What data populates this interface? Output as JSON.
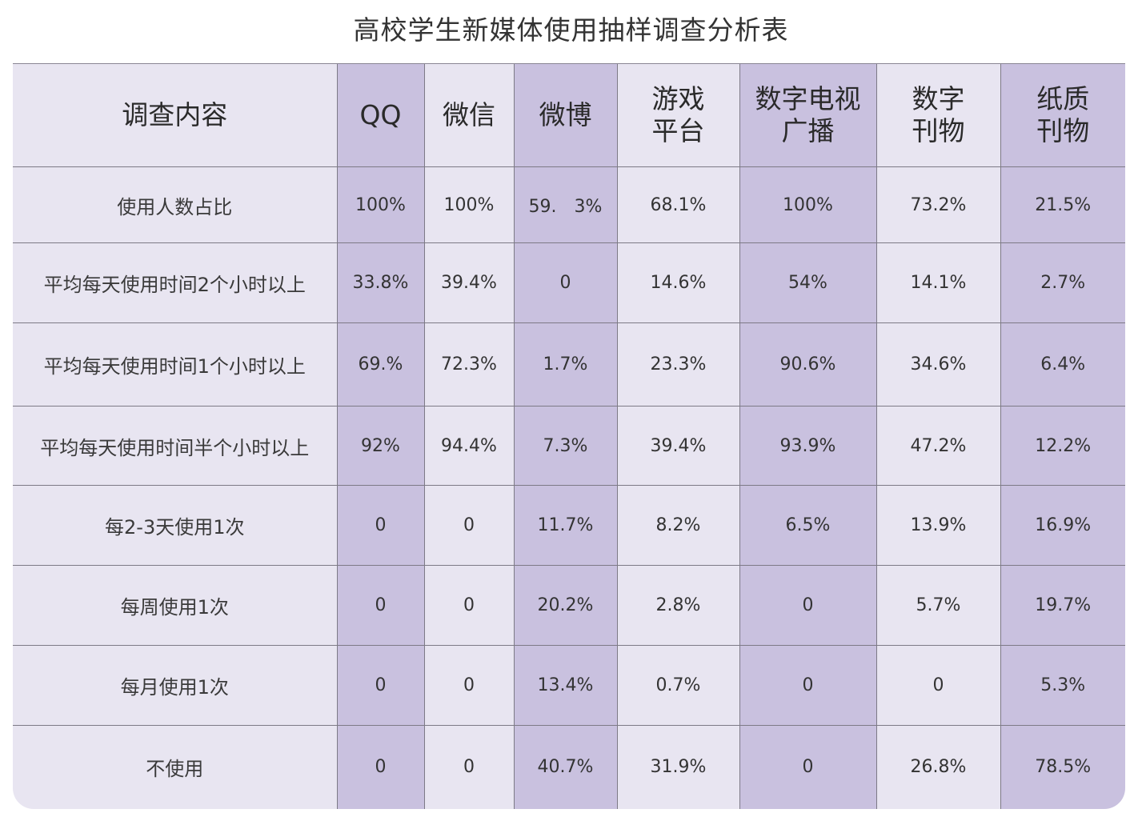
{
  "chart_data": {
    "type": "table",
    "title": "高校学生新媒体使用抽样调查分析表",
    "header": {
      "label": "调查内容",
      "columns": [
        {
          "line1": "QQ",
          "line2": ""
        },
        {
          "line1": "微信",
          "line2": ""
        },
        {
          "line1": "微博",
          "line2": ""
        },
        {
          "line1": "游戏",
          "line2": "平台"
        },
        {
          "line1": "数字电视",
          "line2": "广播"
        },
        {
          "line1": "数字",
          "line2": "刊物"
        },
        {
          "line1": "纸质",
          "line2": "刊物"
        }
      ]
    },
    "rows": [
      {
        "label": "使用人数占比",
        "values": [
          "100%",
          "100%",
          "59.　3%",
          "68.1%",
          "100%",
          "73.2%",
          "21.5%"
        ]
      },
      {
        "label": "平均每天使用时间2个小时以上",
        "values": [
          "33.8%",
          "39.4%",
          "0",
          "14.6%",
          "54%",
          "14.1%",
          "2.7%"
        ]
      },
      {
        "label": "平均每天使用时间1个小时以上",
        "values": [
          "69.%",
          "72.3%",
          "1.7%",
          "23.3%",
          "90.6%",
          "34.6%",
          "6.4%"
        ]
      },
      {
        "label": "平均每天使用时间半个小时以上",
        "values": [
          "92%",
          "94.4%",
          "7.3%",
          "39.4%",
          "93.9%",
          "47.2%",
          "12.2%"
        ]
      },
      {
        "label": "每2-3天使用1次",
        "values": [
          "0",
          "0",
          "11.7%",
          "8.2%",
          "6.5%",
          "13.9%",
          "16.9%"
        ]
      },
      {
        "label": "每周使用1次",
        "values": [
          "0",
          "0",
          "20.2%",
          "2.8%",
          "0",
          "5.7%",
          "19.7%"
        ]
      },
      {
        "label": "每月使用1次",
        "values": [
          "0",
          "0",
          "13.4%",
          "0.7%",
          "0",
          "0",
          "5.3%"
        ]
      },
      {
        "label": "不使用",
        "values": [
          "0",
          "0",
          "40.7%",
          "31.9%",
          "0",
          "26.8%",
          "78.5%"
        ]
      }
    ],
    "colors": {
      "light_cell": "#e8e5f1",
      "dark_cell": "#c9c1df",
      "grid_line": "#7d7a86",
      "text": "#333333"
    }
  }
}
